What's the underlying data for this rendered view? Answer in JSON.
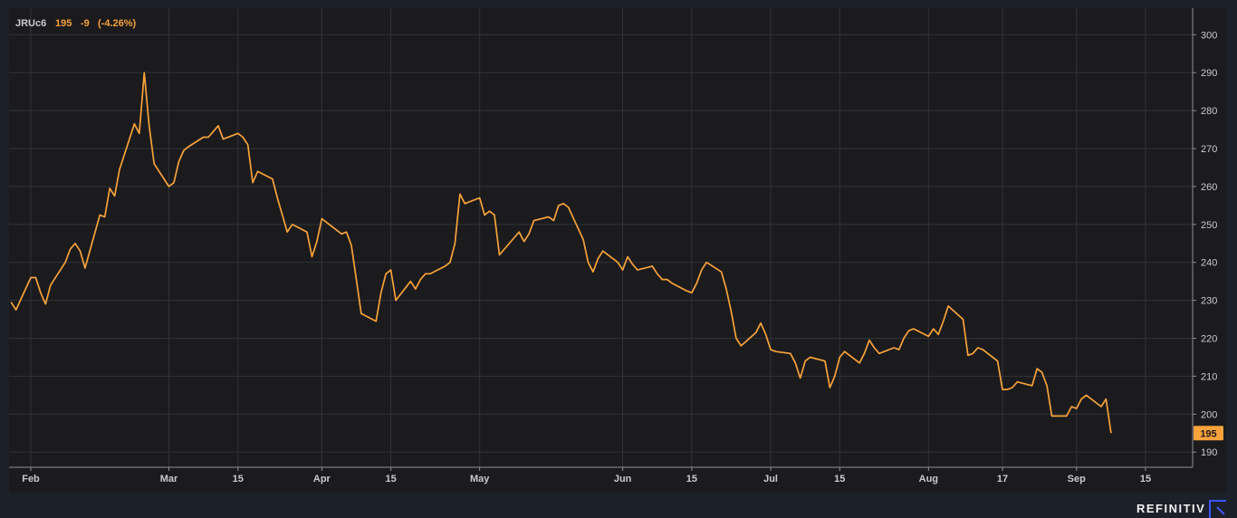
{
  "legend": {
    "symbol": "JRUc6",
    "last": "195",
    "change": "-9",
    "change_pct": "(-4.26%)"
  },
  "brand": {
    "name": "REFINITIV",
    "icon": "refinitiv-logo-icon"
  },
  "colors": {
    "background": "#1b1b1d",
    "frame": "#1b2029",
    "series": "#f7a23b",
    "grid": "#313338",
    "brand_mark": "#3b55ff"
  },
  "chart_data": {
    "type": "line",
    "title": "",
    "xlabel": "",
    "ylabel": "",
    "grid": true,
    "legend_placement": "top-left",
    "y_axis_side": "right",
    "ylim": [
      186,
      307
    ],
    "yticks": [
      190,
      200,
      210,
      220,
      230,
      240,
      250,
      260,
      270,
      280,
      290,
      300
    ],
    "x_tick_labels": [
      {
        "label": "Feb",
        "x": "2021-02-01"
      },
      {
        "label": "Mar",
        "x": "2021-03-01"
      },
      {
        "label": "15",
        "x": "2021-03-15"
      },
      {
        "label": "Apr",
        "x": "2021-04-01"
      },
      {
        "label": "15",
        "x": "2021-04-15"
      },
      {
        "label": "May",
        "x": "2021-05-03"
      },
      {
        "label": "Jun",
        "x": "2021-06-01"
      },
      {
        "label": "15",
        "x": "2021-06-15"
      },
      {
        "label": "Jul",
        "x": "2021-07-01"
      },
      {
        "label": "15",
        "x": "2021-07-15"
      },
      {
        "label": "Aug",
        "x": "2021-08-02"
      },
      {
        "label": "17",
        "x": "2021-08-17"
      },
      {
        "label": "Sep",
        "x": "2021-09-01"
      },
      {
        "label": "15",
        "x": "2021-09-15"
      }
    ],
    "last_value": 195,
    "series": [
      {
        "name": "JRUc6",
        "color": "#f7a23b",
        "points": [
          [
            "2021-01-28",
            229.5
          ],
          [
            "2021-01-29",
            227.5
          ],
          [
            "2021-02-01",
            236
          ],
          [
            "2021-02-02",
            236
          ],
          [
            "2021-02-03",
            232
          ],
          [
            "2021-02-04",
            229
          ],
          [
            "2021-02-05",
            234
          ],
          [
            "2021-02-08",
            240
          ],
          [
            "2021-02-09",
            243.5
          ],
          [
            "2021-02-10",
            245
          ],
          [
            "2021-02-11",
            243
          ],
          [
            "2021-02-12",
            238.5
          ],
          [
            "2021-02-15",
            252.5
          ],
          [
            "2021-02-16",
            252
          ],
          [
            "2021-02-17",
            259.5
          ],
          [
            "2021-02-18",
            257.5
          ],
          [
            "2021-02-19",
            264.5
          ],
          [
            "2021-02-22",
            276.5
          ],
          [
            "2021-02-23",
            274
          ],
          [
            "2021-02-24",
            290
          ],
          [
            "2021-02-25",
            276
          ],
          [
            "2021-02-26",
            266
          ],
          [
            "2021-03-01",
            260
          ],
          [
            "2021-03-02",
            261
          ],
          [
            "2021-03-03",
            266.5
          ],
          [
            "2021-03-04",
            269.5
          ],
          [
            "2021-03-05",
            270.5
          ],
          [
            "2021-03-08",
            273
          ],
          [
            "2021-03-09",
            273
          ],
          [
            "2021-03-10",
            274.5
          ],
          [
            "2021-03-11",
            276
          ],
          [
            "2021-03-12",
            272.5
          ],
          [
            "2021-03-15",
            274
          ],
          [
            "2021-03-16",
            273
          ],
          [
            "2021-03-17",
            271
          ],
          [
            "2021-03-18",
            261
          ],
          [
            "2021-03-19",
            264
          ],
          [
            "2021-03-22",
            262
          ],
          [
            "2021-03-23",
            257
          ],
          [
            "2021-03-24",
            252.5
          ],
          [
            "2021-03-25",
            248
          ],
          [
            "2021-03-26",
            250
          ],
          [
            "2021-03-29",
            248
          ],
          [
            "2021-03-30",
            241.5
          ],
          [
            "2021-03-31",
            245.5
          ],
          [
            "2021-04-01",
            251.5
          ],
          [
            "2021-04-02",
            250.5
          ],
          [
            "2021-04-05",
            247.5
          ],
          [
            "2021-04-06",
            248
          ],
          [
            "2021-04-07",
            244.5
          ],
          [
            "2021-04-08",
            235.5
          ],
          [
            "2021-04-09",
            226.5
          ],
          [
            "2021-04-12",
            224.5
          ],
          [
            "2021-04-13",
            232
          ],
          [
            "2021-04-14",
            237
          ],
          [
            "2021-04-15",
            238
          ],
          [
            "2021-04-16",
            230
          ],
          [
            "2021-04-19",
            235
          ],
          [
            "2021-04-20",
            233
          ],
          [
            "2021-04-21",
            235.5
          ],
          [
            "2021-04-22",
            237
          ],
          [
            "2021-04-23",
            237
          ],
          [
            "2021-04-26",
            239
          ],
          [
            "2021-04-27",
            240
          ],
          [
            "2021-04-28",
            245
          ],
          [
            "2021-04-29",
            258
          ],
          [
            "2021-04-30",
            255.5
          ],
          [
            "2021-05-03",
            257
          ],
          [
            "2021-05-04",
            252.5
          ],
          [
            "2021-05-05",
            253.5
          ],
          [
            "2021-05-06",
            252.5
          ],
          [
            "2021-05-07",
            242
          ],
          [
            "2021-05-10",
            246.5
          ],
          [
            "2021-05-11",
            248
          ],
          [
            "2021-05-12",
            245.5
          ],
          [
            "2021-05-13",
            247.5
          ],
          [
            "2021-05-14",
            251
          ],
          [
            "2021-05-17",
            252
          ],
          [
            "2021-05-18",
            251
          ],
          [
            "2021-05-19",
            255
          ],
          [
            "2021-05-20",
            255.5
          ],
          [
            "2021-05-21",
            254.5
          ],
          [
            "2021-05-24",
            246
          ],
          [
            "2021-05-25",
            240
          ],
          [
            "2021-05-26",
            237.5
          ],
          [
            "2021-05-27",
            241
          ],
          [
            "2021-05-28",
            243
          ],
          [
            "2021-05-31",
            240
          ],
          [
            "2021-06-01",
            238
          ],
          [
            "2021-06-02",
            241.5
          ],
          [
            "2021-06-03",
            239.5
          ],
          [
            "2021-06-04",
            238
          ],
          [
            "2021-06-07",
            239
          ],
          [
            "2021-06-08",
            237
          ],
          [
            "2021-06-09",
            235.5
          ],
          [
            "2021-06-10",
            235.5
          ],
          [
            "2021-06-11",
            234.5
          ],
          [
            "2021-06-14",
            232.5
          ],
          [
            "2021-06-15",
            232
          ],
          [
            "2021-06-16",
            234.5
          ],
          [
            "2021-06-17",
            238
          ],
          [
            "2021-06-18",
            240
          ],
          [
            "2021-06-21",
            237.5
          ],
          [
            "2021-06-22",
            233
          ],
          [
            "2021-06-23",
            227
          ],
          [
            "2021-06-24",
            220
          ],
          [
            "2021-06-25",
            218
          ],
          [
            "2021-06-28",
            221.5
          ],
          [
            "2021-06-29",
            224
          ],
          [
            "2021-06-30",
            221
          ],
          [
            "2021-07-01",
            217
          ],
          [
            "2021-07-02",
            216.5
          ],
          [
            "2021-07-05",
            216
          ],
          [
            "2021-07-06",
            213.5
          ],
          [
            "2021-07-07",
            209.5
          ],
          [
            "2021-07-08",
            214
          ],
          [
            "2021-07-09",
            215
          ],
          [
            "2021-07-12",
            214
          ],
          [
            "2021-07-13",
            207
          ],
          [
            "2021-07-14",
            210
          ],
          [
            "2021-07-15",
            215
          ],
          [
            "2021-07-16",
            216.5
          ],
          [
            "2021-07-19",
            213.5
          ],
          [
            "2021-07-20",
            216
          ],
          [
            "2021-07-21",
            219.5
          ],
          [
            "2021-07-22",
            217.5
          ],
          [
            "2021-07-23",
            216
          ],
          [
            "2021-07-26",
            217.5
          ],
          [
            "2021-07-27",
            217
          ],
          [
            "2021-07-28",
            220
          ],
          [
            "2021-07-29",
            222
          ],
          [
            "2021-07-30",
            222.5
          ],
          [
            "2021-08-02",
            220.5
          ],
          [
            "2021-08-03",
            222.5
          ],
          [
            "2021-08-04",
            221
          ],
          [
            "2021-08-05",
            224.5
          ],
          [
            "2021-08-06",
            228.5
          ],
          [
            "2021-08-09",
            225
          ],
          [
            "2021-08-10",
            215.5
          ],
          [
            "2021-08-11",
            216
          ],
          [
            "2021-08-12",
            217.5
          ],
          [
            "2021-08-13",
            217
          ],
          [
            "2021-08-16",
            214
          ],
          [
            "2021-08-17",
            206.5
          ],
          [
            "2021-08-18",
            206.5
          ],
          [
            "2021-08-19",
            207
          ],
          [
            "2021-08-20",
            208.5
          ],
          [
            "2021-08-23",
            207.5
          ],
          [
            "2021-08-24",
            212
          ],
          [
            "2021-08-25",
            211
          ],
          [
            "2021-08-26",
            207.5
          ],
          [
            "2021-08-27",
            199.5
          ],
          [
            "2021-08-30",
            199.5
          ],
          [
            "2021-08-31",
            202
          ],
          [
            "2021-09-01",
            201.5
          ],
          [
            "2021-09-02",
            204
          ],
          [
            "2021-09-03",
            205
          ],
          [
            "2021-09-06",
            202
          ],
          [
            "2021-09-07",
            204
          ],
          [
            "2021-09-08",
            195
          ]
        ]
      }
    ]
  }
}
